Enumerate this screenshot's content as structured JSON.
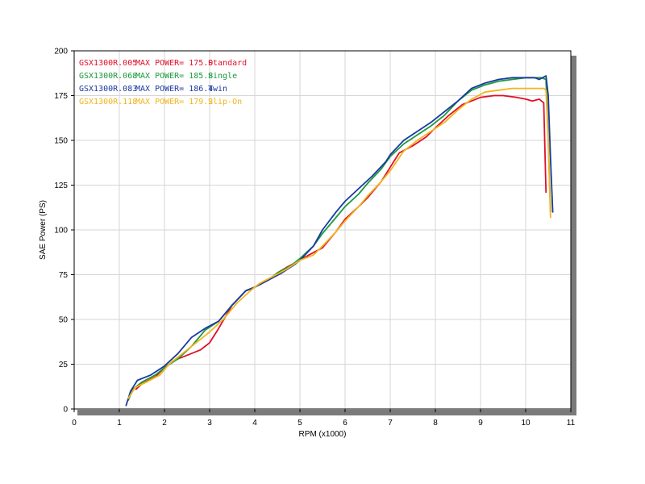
{
  "chart_data": {
    "type": "line",
    "xlabel": "RPM (x1000)",
    "ylabel": "SAE Power (PS)",
    "xlim": [
      0,
      11
    ],
    "ylim": [
      0,
      200
    ],
    "x_ticks": [
      "0",
      "1",
      "2",
      "3",
      "4",
      "5",
      "6",
      "7",
      "8",
      "9",
      "10",
      "11"
    ],
    "y_ticks": [
      "0",
      "25",
      "50",
      "75",
      "100",
      "125",
      "150",
      "175",
      "200"
    ],
    "grid": true,
    "legend_position": "top-left",
    "series": [
      {
        "legend_model": "GSX1300R.005",
        "legend_power": "MAX POWER= 175.0",
        "name": "Standard",
        "color": "#e0102a",
        "x": [
          1.37,
          1.5,
          1.8,
          2.0,
          2.2,
          2.5,
          2.8,
          3.0,
          3.2,
          3.5,
          3.8,
          4.0,
          4.3,
          4.5,
          4.7,
          5.0,
          5.2,
          5.5,
          5.8,
          6.0,
          6.3,
          6.5,
          6.8,
          7.0,
          7.2,
          7.5,
          7.8,
          8.0,
          8.3,
          8.6,
          8.8,
          9.0,
          9.3,
          9.5,
          9.8,
          10.0,
          10.15,
          10.3,
          10.4,
          10.45
        ],
        "y": [
          11,
          14,
          18,
          23,
          27,
          30,
          33,
          37,
          45,
          58,
          66,
          68,
          72,
          76,
          79,
          83,
          86,
          90,
          99,
          106,
          113,
          118,
          127,
          135,
          143,
          147,
          152,
          157,
          164,
          170,
          172,
          174,
          175,
          175,
          174,
          173,
          172,
          173,
          171,
          121
        ]
      },
      {
        "legend_model": "GSX1300R.068",
        "legend_power": "MAX POWER= 185.8",
        "name": "Single",
        "color": "#1a9a3c",
        "x": [
          1.2,
          1.3,
          1.5,
          1.8,
          2.0,
          2.3,
          2.6,
          2.9,
          3.2,
          3.5,
          3.8,
          4.0,
          4.3,
          4.5,
          4.8,
          5.0,
          5.3,
          5.5,
          5.8,
          6.0,
          6.3,
          6.5,
          6.8,
          7.0,
          7.3,
          7.6,
          7.9,
          8.2,
          8.5,
          8.8,
          9.1,
          9.4,
          9.7,
          10.0,
          10.2,
          10.35,
          10.45,
          10.5,
          10.55
        ],
        "y": [
          5,
          11,
          15,
          19,
          23,
          28,
          35,
          44,
          49,
          58,
          66,
          68,
          72,
          76,
          80,
          84,
          91,
          98,
          107,
          113,
          120,
          126,
          134,
          141,
          148,
          153,
          158,
          164,
          172,
          178,
          181,
          183,
          184,
          185,
          185,
          185,
          184,
          150,
          110
        ]
      },
      {
        "legend_model": "GSX1300R.083",
        "legend_power": "MAX POWER= 186.4",
        "name": "Twin",
        "color": "#1a3aa0",
        "x": [
          1.15,
          1.25,
          1.4,
          1.7,
          2.0,
          2.3,
          2.6,
          2.9,
          3.2,
          3.5,
          3.8,
          4.0,
          4.3,
          4.6,
          4.9,
          5.0,
          5.3,
          5.5,
          5.8,
          6.0,
          6.3,
          6.6,
          6.9,
          7.0,
          7.3,
          7.6,
          7.9,
          8.2,
          8.5,
          8.8,
          9.1,
          9.4,
          9.7,
          10.0,
          10.2,
          10.3,
          10.45,
          10.5,
          10.55,
          10.6
        ],
        "y": [
          2,
          10,
          16,
          19,
          24,
          31,
          40,
          45,
          49,
          58,
          66,
          68,
          72,
          76,
          81,
          83,
          91,
          100,
          110,
          116,
          123,
          130,
          138,
          142,
          150,
          155,
          160,
          166,
          172,
          179,
          182,
          184,
          185,
          185,
          185,
          184,
          186,
          175,
          140,
          110
        ]
      },
      {
        "legend_model": "GSX1300R.118",
        "legend_power": "MAX POWER= 179.2",
        "name": "Slip-On",
        "color": "#f2b51c",
        "x": [
          1.2,
          1.35,
          1.6,
          1.9,
          2.1,
          2.4,
          2.7,
          3.0,
          3.3,
          3.6,
          3.9,
          4.1,
          4.4,
          4.7,
          5.0,
          5.3,
          5.5,
          5.8,
          6.0,
          6.3,
          6.5,
          6.8,
          7.0,
          7.3,
          7.6,
          7.9,
          8.2,
          8.5,
          8.8,
          9.1,
          9.4,
          9.7,
          10.0,
          10.2,
          10.4,
          10.45,
          10.5,
          10.55
        ],
        "y": [
          6,
          12,
          15,
          19,
          25,
          31,
          37,
          43,
          50,
          59,
          66,
          70,
          74,
          78,
          83,
          86,
          91,
          99,
          105,
          113,
          119,
          127,
          133,
          144,
          150,
          155,
          160,
          167,
          173,
          177,
          178,
          179,
          179,
          179,
          179,
          178,
          150,
          107
        ]
      }
    ]
  }
}
